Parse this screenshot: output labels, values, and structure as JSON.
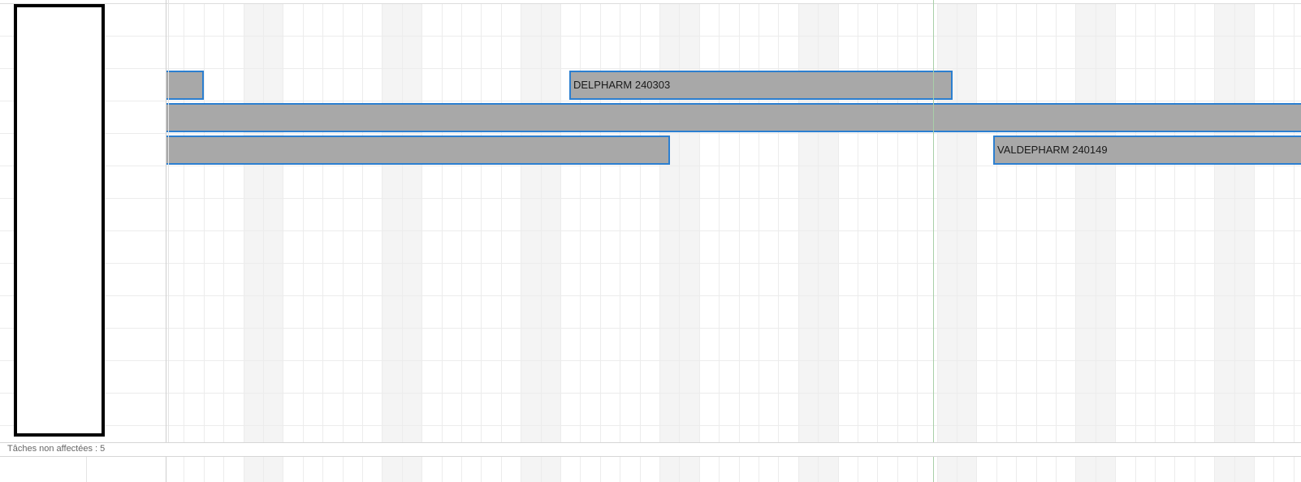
{
  "status_bar": {
    "unassigned_label": "Tâches non affectées : 5"
  },
  "tasks": [
    {
      "id": "task-1",
      "label": "",
      "row": 1
    },
    {
      "id": "task-2",
      "label": "DELPHARM 240303",
      "row": 1
    },
    {
      "id": "task-3",
      "label": "",
      "row": 2
    },
    {
      "id": "task-4",
      "label": "",
      "row": 3
    },
    {
      "id": "task-5",
      "label": "VALDEPHARM 240149",
      "row": 3
    }
  ],
  "colors": {
    "task_fill": "#a8a8a8",
    "task_border": "#2c7fd0",
    "weekend_fill": "#f4f4f4",
    "today_line": "#a8cfa8",
    "resource_border": "#000000"
  }
}
